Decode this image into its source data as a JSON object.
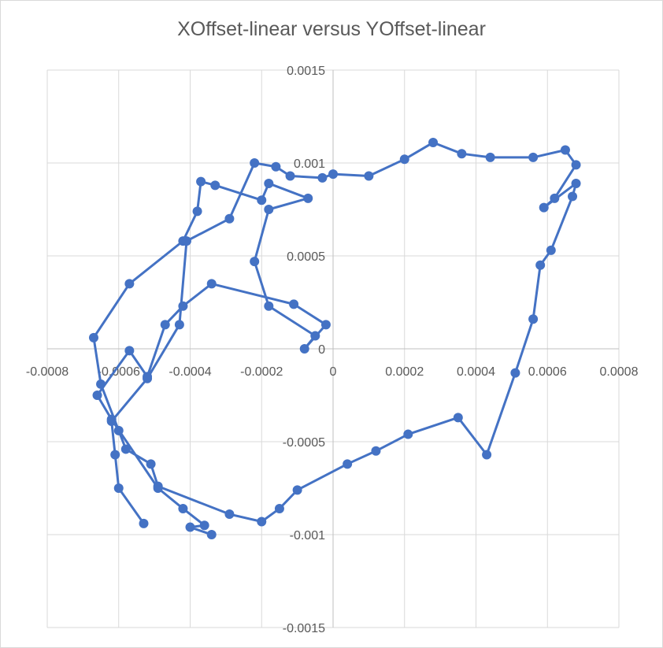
{
  "chart_data": {
    "type": "scatter",
    "title": "XOffset-linear versus YOffset-linear",
    "xlabel": "",
    "ylabel": "",
    "xlim": [
      -0.0008,
      0.0008
    ],
    "ylim": [
      -0.0015,
      0.0015
    ],
    "x_ticks": [
      "-0.0008",
      "-0.0006",
      "-0.0004",
      "-0.0002",
      "0",
      "0.0002",
      "0.0004",
      "0.0006",
      "0.0008"
    ],
    "y_ticks": [
      "0.0015",
      "0.001",
      "0.0005",
      "0",
      "-0.0005",
      "-0.001",
      "-0.0015"
    ],
    "grid": true,
    "legend": "none",
    "series": [
      {
        "color": "#4472c4",
        "marker": "circle",
        "line": true,
        "points": [
          [
            -0.00053,
            -0.00094
          ],
          [
            -0.0006,
            -0.00075
          ],
          [
            -0.00061,
            -0.00057
          ],
          [
            -0.00062,
            -0.00039
          ],
          [
            -0.00052,
            -0.00016
          ],
          [
            -0.00043,
            0.00013
          ],
          [
            -0.00041,
            0.00058
          ],
          [
            -0.00029,
            0.0007
          ],
          [
            -0.00022,
            0.001
          ],
          [
            -0.00016,
            0.00098
          ],
          [
            -0.00012,
            0.00093
          ],
          [
            -3e-05,
            0.00092
          ],
          [
            0.0,
            0.00094
          ],
          [
            0.0001,
            0.00093
          ],
          [
            0.0002,
            0.00102
          ],
          [
            0.00028,
            0.00111
          ],
          [
            0.00036,
            0.00105
          ],
          [
            0.00044,
            0.00103
          ],
          [
            0.00056,
            0.00103
          ],
          [
            0.00065,
            0.00107
          ],
          [
            0.00068,
            0.00099
          ],
          [
            0.00062,
            0.00081
          ],
          [
            0.00059,
            0.00076
          ],
          [
            0.00068,
            0.00089
          ],
          [
            0.00067,
            0.00082
          ],
          [
            0.00061,
            0.00053
          ],
          [
            0.00058,
            0.00045
          ],
          [
            0.00056,
            0.00016
          ],
          [
            0.00051,
            -0.00013
          ],
          [
            0.00043,
            -0.00057
          ],
          [
            0.00035,
            -0.00037
          ],
          [
            0.00021,
            -0.00046
          ],
          [
            0.00012,
            -0.00055
          ],
          [
            4e-05,
            -0.00062
          ],
          [
            -0.0001,
            -0.00076
          ],
          [
            -0.00015,
            -0.00086
          ],
          [
            -0.0002,
            -0.00093
          ],
          [
            -0.00029,
            -0.00089
          ],
          [
            -0.00049,
            -0.00074
          ],
          [
            -0.00051,
            -0.00062
          ],
          [
            -0.00058,
            -0.00054
          ],
          [
            -0.0006,
            -0.00044
          ],
          [
            -0.00065,
            -0.00019
          ],
          [
            -0.00067,
            6e-05
          ],
          [
            -0.00057,
            0.00035
          ],
          [
            -0.00042,
            0.00058
          ],
          [
            -0.00038,
            0.00074
          ],
          [
            -0.00037,
            0.0009
          ],
          [
            -0.00033,
            0.00088
          ],
          [
            -0.0002,
            0.0008
          ],
          [
            -0.00018,
            0.00089
          ],
          [
            -7e-05,
            0.00081
          ],
          [
            -0.00018,
            0.00075
          ],
          [
            -0.00022,
            0.00047
          ],
          [
            -0.00018,
            0.00023
          ],
          [
            -5e-05,
            7e-05
          ],
          [
            -8e-05,
            0.0
          ],
          [
            -2e-05,
            0.00013
          ],
          [
            -0.00011,
            0.00024
          ],
          [
            -0.00034,
            0.00035
          ],
          [
            -0.00042,
            0.00023
          ],
          [
            -0.00047,
            0.00013
          ],
          [
            -0.00052,
            -0.00015
          ],
          [
            -0.00057,
            -1e-05
          ],
          [
            -0.00066,
            -0.00025
          ],
          [
            -0.00062,
            -0.00038
          ],
          [
            -0.00049,
            -0.00075
          ],
          [
            -0.00042,
            -0.00086
          ],
          [
            -0.00036,
            -0.00095
          ],
          [
            -0.0004,
            -0.00096
          ],
          [
            -0.00034,
            -0.001
          ]
        ]
      }
    ]
  }
}
